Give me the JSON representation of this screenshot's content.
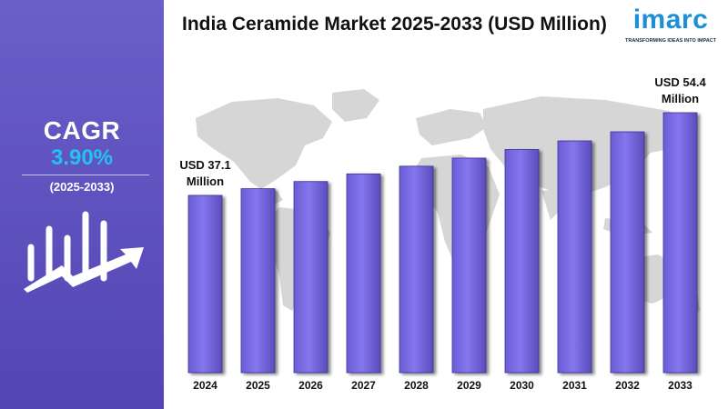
{
  "title": "India Ceramide Market 2025-2033 (USD Million)",
  "cagr": {
    "label": "CAGR",
    "value": "3.90%",
    "period": "(2025-2033)"
  },
  "logo": {
    "name": "imarc",
    "tagline": "TRANSFORMING IDEAS INTO IMPACT"
  },
  "colors": {
    "sidebar": "#5a4dbb",
    "bar": "#7b6ee6",
    "bar_dark": "#5a4dbb",
    "cagr_value": "#22c4ee",
    "logo": "#1c8fd8",
    "map": "#d6d6d6"
  },
  "icons": [
    "growth-chart-icon",
    "world-map-icon"
  ],
  "chart_data": {
    "type": "bar",
    "categories": [
      "2024",
      "2025",
      "2026",
      "2027",
      "2028",
      "2029",
      "2030",
      "2031",
      "2032",
      "2033"
    ],
    "values": [
      37.1,
      38.5,
      40.0,
      41.6,
      43.2,
      44.9,
      46.7,
      48.5,
      50.4,
      54.4
    ],
    "ylim": [
      0,
      60
    ],
    "grid": false,
    "annotations": [
      {
        "category": "2024",
        "line1": "USD 37.1",
        "line2": "Million"
      },
      {
        "category": "2033",
        "line1": "USD 54.4",
        "line2": "Million"
      }
    ]
  }
}
